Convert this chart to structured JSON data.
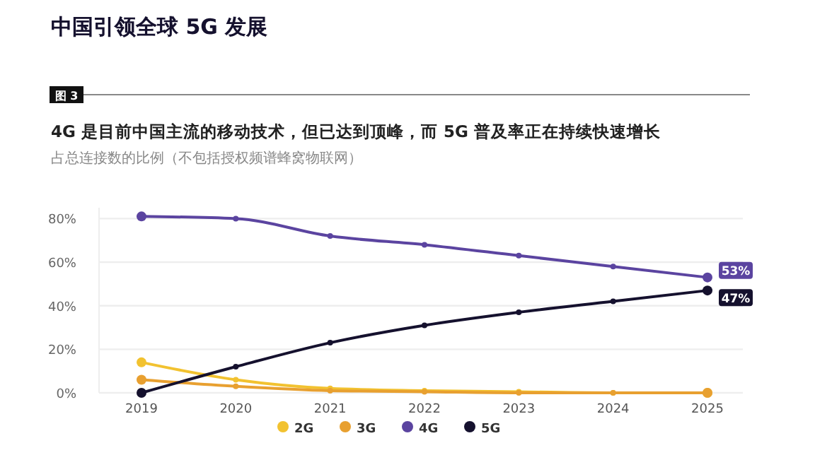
{
  "chart_data": {
    "type": "line",
    "title": "中国引领全球 5G 发展",
    "subtitle": "4G 是目前中国主流的移动技术，但已达到顶峰，而 5G 普及率正在持续快速增长",
    "ylabel": "占总连接数的比例（不包括授权频谱蜂窝物联网）",
    "annotations": [
      "图 3"
    ],
    "categories": [
      "2019",
      "2020",
      "2021",
      "2022",
      "2023",
      "2024",
      "2025"
    ],
    "ylim": [
      0,
      85
    ],
    "yticks": [
      {
        "value": 0,
        "label": "0%"
      },
      {
        "value": 20,
        "label": "20%"
      },
      {
        "value": 40,
        "label": "40%"
      },
      {
        "value": 60,
        "label": "60%"
      },
      {
        "value": 80,
        "label": "80%"
      }
    ],
    "grid": "y",
    "legend": "bottom",
    "marker": "circle",
    "line_style": "solid",
    "series": [
      {
        "name": "2G",
        "color": "#f2c230",
        "values": [
          14,
          6,
          2,
          1,
          0.5,
          0,
          0
        ]
      },
      {
        "name": "3G",
        "color": "#e8a030",
        "values": [
          6,
          3,
          1,
          0.5,
          0,
          0,
          0
        ]
      },
      {
        "name": "4G",
        "color": "#5b44a0",
        "values": [
          81,
          80,
          72,
          68,
          63,
          58,
          53
        ],
        "value_labels": [
          null,
          null,
          null,
          null,
          null,
          null,
          "53%"
        ]
      },
      {
        "name": "5G",
        "color": "#15112e",
        "values": [
          0,
          12,
          23,
          31,
          37,
          42,
          47
        ],
        "value_labels": [
          null,
          null,
          null,
          null,
          null,
          null,
          "47%"
        ]
      }
    ]
  }
}
